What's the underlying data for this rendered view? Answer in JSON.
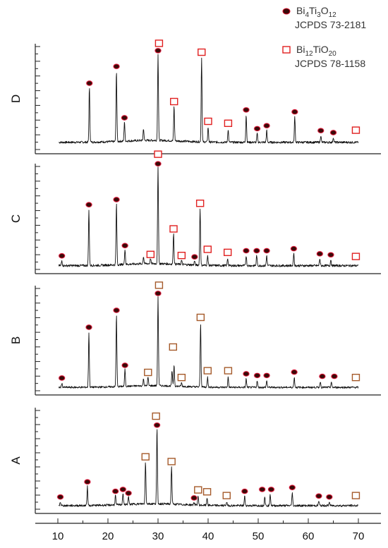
{
  "chart_data": {
    "type": "line",
    "title": "",
    "xlabel": "",
    "ylabel": "",
    "xlim": [
      8,
      75
    ],
    "x_ticks": [
      "10",
      "20",
      "30",
      "40",
      "50",
      "60",
      "70"
    ],
    "legend": {
      "placement": "top-right",
      "entries": [
        {
          "marker": "filled-dot",
          "formula": [
            "Bi",
            "4",
            "Ti",
            "3",
            "O",
            "12"
          ],
          "ref": "JCPDS 73-2181"
        },
        {
          "marker": "open-square",
          "formula": [
            "Bi",
            "12",
            "TiO",
            "20"
          ],
          "ref": "JCPDS 78-1158"
        }
      ]
    },
    "colors": {
      "dot_fill": "#3a0a0a",
      "dot_ring": "#d8102a",
      "square_stroke": "#e02020",
      "square_stroke_A": "#a55a2a",
      "trace": "#111111"
    },
    "panels": [
      {
        "label": "D",
        "peaks": [
          [
            16.3,
            0.55
          ],
          [
            21.7,
            0.72
          ],
          [
            23.3,
            0.2
          ],
          [
            27.1,
            0.12
          ],
          [
            30.0,
            0.88
          ],
          [
            33.2,
            0.35
          ],
          [
            38.7,
            0.85
          ],
          [
            40.0,
            0.15
          ],
          [
            44.0,
            0.13
          ],
          [
            47.6,
            0.28
          ],
          [
            49.8,
            0.09
          ],
          [
            51.7,
            0.12
          ],
          [
            57.3,
            0.26
          ],
          [
            62.5,
            0.07
          ],
          [
            65.0,
            0.05
          ]
        ],
        "dots": [
          [
            16.3,
            0.55
          ],
          [
            21.7,
            0.72
          ],
          [
            23.3,
            0.2
          ],
          [
            30.0,
            0.88
          ],
          [
            47.6,
            0.28
          ],
          [
            49.8,
            0.09
          ],
          [
            51.7,
            0.12
          ],
          [
            57.3,
            0.26
          ],
          [
            62.5,
            0.07
          ],
          [
            65.0,
            0.05
          ]
        ],
        "squares": [
          [
            30.2,
            0.94
          ],
          [
            33.2,
            0.35
          ],
          [
            38.7,
            0.85
          ],
          [
            40.0,
            0.15
          ],
          [
            44.0,
            0.13
          ],
          [
            69.5,
            0.06
          ]
        ]
      },
      {
        "label": "C",
        "peaks": [
          [
            10.8,
            0.05
          ],
          [
            16.2,
            0.55
          ],
          [
            21.7,
            0.6
          ],
          [
            23.4,
            0.15
          ],
          [
            27.1,
            0.07
          ],
          [
            28.5,
            0.05
          ],
          [
            30.0,
            0.95
          ],
          [
            33.1,
            0.3
          ],
          [
            34.7,
            0.04
          ],
          [
            37.3,
            0.04
          ],
          [
            38.4,
            0.55
          ],
          [
            39.9,
            0.1
          ],
          [
            43.9,
            0.07
          ],
          [
            47.6,
            0.1
          ],
          [
            49.7,
            0.1
          ],
          [
            51.7,
            0.1
          ],
          [
            57.1,
            0.12
          ],
          [
            62.3,
            0.07
          ],
          [
            64.5,
            0.06
          ]
        ],
        "dots": [
          [
            10.8,
            0.05
          ],
          [
            16.2,
            0.55
          ],
          [
            21.7,
            0.6
          ],
          [
            23.4,
            0.15
          ],
          [
            30.0,
            0.95
          ],
          [
            37.3,
            0.04
          ],
          [
            47.6,
            0.1
          ],
          [
            49.7,
            0.1
          ],
          [
            51.7,
            0.1
          ],
          [
            57.1,
            0.12
          ],
          [
            62.3,
            0.07
          ],
          [
            64.5,
            0.06
          ]
        ],
        "squares": [
          [
            30.0,
            1.03
          ],
          [
            28.5,
            0.05
          ],
          [
            33.1,
            0.3
          ],
          [
            34.7,
            0.04
          ],
          [
            38.4,
            0.55
          ],
          [
            39.9,
            0.1
          ],
          [
            43.9,
            0.07
          ],
          [
            69.5,
            0.03
          ]
        ]
      },
      {
        "label": "B",
        "peaks": [
          [
            10.8,
            0.05
          ],
          [
            16.2,
            0.65
          ],
          [
            21.7,
            0.85
          ],
          [
            23.4,
            0.2
          ],
          [
            27.1,
            0.08
          ],
          [
            28.0,
            0.1
          ],
          [
            30.0,
            1.05
          ],
          [
            32.8,
            0.18
          ],
          [
            33.2,
            0.25
          ],
          [
            34.7,
            0.04
          ],
          [
            38.5,
            0.75
          ],
          [
            39.9,
            0.12
          ],
          [
            44.0,
            0.12
          ],
          [
            47.6,
            0.1
          ],
          [
            49.8,
            0.08
          ],
          [
            51.7,
            0.08
          ],
          [
            57.2,
            0.12
          ],
          [
            62.4,
            0.07
          ],
          [
            64.6,
            0.06
          ]
        ],
        "dots": [
          [
            10.8,
            0.05
          ],
          [
            16.2,
            0.65
          ],
          [
            21.7,
            0.85
          ],
          [
            23.4,
            0.2
          ],
          [
            30.0,
            1.05
          ],
          [
            47.6,
            0.1
          ],
          [
            49.8,
            0.08
          ],
          [
            51.7,
            0.08
          ],
          [
            57.2,
            0.12
          ],
          [
            62.8,
            0.07
          ],
          [
            65.2,
            0.07
          ]
        ],
        "squares": [
          [
            30.2,
            1.13
          ],
          [
            28.0,
            0.1
          ],
          [
            33.0,
            0.4
          ],
          [
            34.7,
            0.04
          ],
          [
            38.5,
            0.75
          ],
          [
            39.9,
            0.12
          ],
          [
            44.0,
            0.12
          ],
          [
            69.5,
            0.04
          ]
        ]
      },
      {
        "label": "A",
        "peaks": [
          [
            10.5,
            0.04
          ],
          [
            15.9,
            0.2
          ],
          [
            21.5,
            0.1
          ],
          [
            23.0,
            0.12
          ],
          [
            24.1,
            0.08
          ],
          [
            27.5,
            0.45
          ],
          [
            29.8,
            0.8
          ],
          [
            32.7,
            0.4
          ],
          [
            37.2,
            0.03
          ],
          [
            38.0,
            0.1
          ],
          [
            39.8,
            0.08
          ],
          [
            43.7,
            0.04
          ],
          [
            47.3,
            0.1
          ],
          [
            51.3,
            0.1
          ],
          [
            52.4,
            0.12
          ],
          [
            56.8,
            0.14
          ],
          [
            62.1,
            0.05
          ],
          [
            64.2,
            0.04
          ]
        ],
        "dots": [
          [
            10.5,
            0.04
          ],
          [
            15.9,
            0.2
          ],
          [
            21.5,
            0.1
          ],
          [
            23.0,
            0.12
          ],
          [
            24.1,
            0.08
          ],
          [
            29.8,
            0.8
          ],
          [
            37.2,
            0.03
          ],
          [
            47.3,
            0.1
          ],
          [
            50.8,
            0.12
          ],
          [
            52.6,
            0.12
          ],
          [
            56.8,
            0.14
          ],
          [
            62.1,
            0.05
          ],
          [
            64.2,
            0.04
          ]
        ],
        "squares": [
          [
            29.6,
            0.88
          ],
          [
            27.5,
            0.45
          ],
          [
            32.7,
            0.4
          ],
          [
            38.0,
            0.1
          ],
          [
            39.8,
            0.08
          ],
          [
            43.7,
            0.04
          ],
          [
            69.5,
            0.04
          ]
        ]
      }
    ]
  }
}
